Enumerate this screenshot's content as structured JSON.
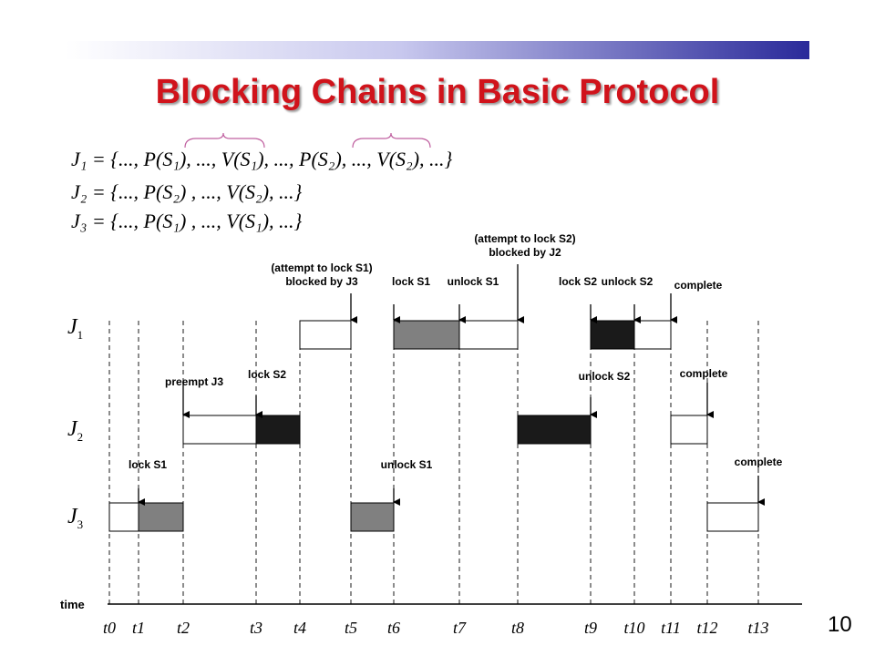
{
  "slide": {
    "title": "Blocking Chains in Basic Protocol",
    "page_number": "10"
  },
  "equations": [
    {
      "job": "J1",
      "text": "J₁ = {..., P(S₁), ..., V(S₁), ..., P(S₂), ..., V(S₂), ...}"
    },
    {
      "job": "J2",
      "text": "J₂ = {..., P(S₂) , ..., V(S₂), ...}"
    },
    {
      "job": "J3",
      "text": "J₃ = {..., P(S₁) , ..., V(S₁), ...}"
    }
  ],
  "timeline": {
    "axis_label": "time",
    "ticks": [
      "t0",
      "t1",
      "t2",
      "t3",
      "t4",
      "t5",
      "t6",
      "t7",
      "t8",
      "t9",
      "t10",
      "t11",
      "t12",
      "t13"
    ],
    "jobs": [
      {
        "main": "J",
        "sub": "1"
      },
      {
        "main": "J",
        "sub": "2"
      },
      {
        "main": "J",
        "sub": "3"
      }
    ],
    "legend_colors": {
      "S1": "#808080",
      "S2": "#1a1a1a"
    },
    "segments": [
      {
        "job": 3,
        "from": 0,
        "to": 1,
        "kind": "plain"
      },
      {
        "job": 3,
        "from": 1,
        "to": 2,
        "kind": "S1"
      },
      {
        "job": 2,
        "from": 2,
        "to": 3,
        "kind": "plain"
      },
      {
        "job": 2,
        "from": 3,
        "to": 4,
        "kind": "S2"
      },
      {
        "job": 1,
        "from": 4,
        "to": 5,
        "kind": "plain"
      },
      {
        "job": 3,
        "from": 5,
        "to": 6,
        "kind": "S1"
      },
      {
        "job": 1,
        "from": 6,
        "to": 7,
        "kind": "S1"
      },
      {
        "job": 1,
        "from": 7,
        "to": 8,
        "kind": "plain"
      },
      {
        "job": 2,
        "from": 8,
        "to": 9,
        "kind": "S2"
      },
      {
        "job": 1,
        "from": 9,
        "to": 10,
        "kind": "S2"
      },
      {
        "job": 1,
        "from": 10,
        "to": 11,
        "kind": "plain"
      },
      {
        "job": 2,
        "from": 11,
        "to": 12,
        "kind": "plain"
      },
      {
        "job": 3,
        "from": 12,
        "to": 13,
        "kind": "plain"
      }
    ],
    "events": [
      {
        "job": 3,
        "tick": 1,
        "label": "lock S1"
      },
      {
        "job": 2,
        "tick": 2,
        "label": "preempt J3"
      },
      {
        "job": 2,
        "tick": 3,
        "label": "lock S2"
      },
      {
        "job": 1,
        "tick": 5,
        "label": "(attempt to lock S1) blocked by J3"
      },
      {
        "job": 3,
        "tick": 6,
        "label": "unlock S1"
      },
      {
        "job": 1,
        "tick": 6,
        "label": "lock S1"
      },
      {
        "job": 1,
        "tick": 7,
        "label": "unlock S1"
      },
      {
        "job": 1,
        "tick": 8,
        "label": "(attempt to lock S2) blocked by J2"
      },
      {
        "job": 2,
        "tick": 9,
        "label": "unlock S2"
      },
      {
        "job": 1,
        "tick": 9,
        "label": "lock S2"
      },
      {
        "job": 1,
        "tick": 10,
        "label": "unlock S2"
      },
      {
        "job": 1,
        "tick": 11,
        "label": "complete"
      },
      {
        "job": 2,
        "tick": 12,
        "label": "complete"
      },
      {
        "job": 3,
        "tick": 13,
        "label": "complete"
      }
    ]
  }
}
